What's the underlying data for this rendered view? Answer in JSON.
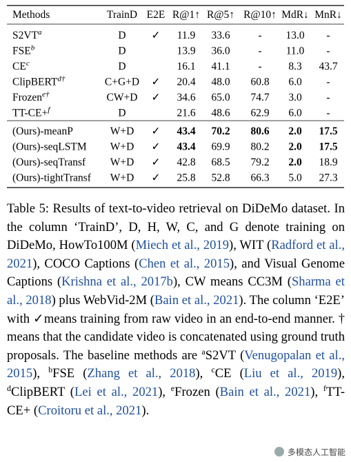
{
  "table": {
    "header": [
      "Methods",
      "TrainD",
      "E2E",
      "R@1↑",
      "R@5↑",
      "R@10↑",
      "MdR↓",
      "MnR↓"
    ],
    "groups": [
      [
        {
          "method": "S2VT",
          "sup": "a",
          "cells": [
            "D",
            "✓",
            "11.9",
            "33.6",
            "-",
            "13.0",
            "-"
          ],
          "bold": []
        },
        {
          "method": "FSE",
          "sup": "b",
          "cells": [
            "D",
            null,
            "13.9",
            "36.0",
            "-",
            "11.0",
            "-"
          ],
          "bold": []
        },
        {
          "method": "CE",
          "sup": "c",
          "cells": [
            "D",
            null,
            "16.1",
            "41.1",
            "-",
            "8.3",
            "43.7"
          ],
          "bold": []
        },
        {
          "method": "ClipBERT",
          "sup": "d†",
          "cells": [
            "C+G+D",
            "✓",
            "20.4",
            "48.0",
            "60.8",
            "6.0",
            "-"
          ],
          "bold": []
        },
        {
          "method": "Frozen",
          "sup": "e†",
          "cells": [
            "CW+D",
            "✓",
            "34.6",
            "65.0",
            "74.7",
            "3.0",
            "-"
          ],
          "bold": []
        },
        {
          "method": "TT-CE+",
          "sup": "f",
          "cells": [
            "D",
            null,
            "21.6",
            "48.6",
            "62.9",
            "6.0",
            "-"
          ],
          "bold": []
        }
      ],
      [
        {
          "method": "(Ours)-meanP",
          "sup": null,
          "cells": [
            "W+D",
            "✓",
            "43.4",
            "70.2",
            "80.6",
            "2.0",
            "17.5"
          ],
          "bold": [
            2,
            3,
            4,
            5,
            6
          ]
        },
        {
          "method": "(Ours)-seqLSTM",
          "sup": null,
          "cells": [
            "W+D",
            "✓",
            "43.4",
            "69.9",
            "80.2",
            "2.0",
            "17.5"
          ],
          "bold": [
            2,
            5,
            6
          ]
        },
        {
          "method": "(Ours)-seqTransf",
          "sup": null,
          "cells": [
            "W+D",
            "✓",
            "42.8",
            "68.5",
            "79.2",
            "2.0",
            "18.9"
          ],
          "bold": [
            5
          ]
        },
        {
          "method": "(Ours)-tightTransf",
          "sup": null,
          "cells": [
            "W+D",
            "✓",
            "25.8",
            "52.8",
            "66.3",
            "5.0",
            "27.3"
          ],
          "bold": []
        }
      ]
    ]
  },
  "caption": [
    {
      "text": "Table 5: Results of text-to-video retrieval on DiDeMo dataset. In the column ‘TrainD’, D, H, W, C, and G denote training on DiDeMo, HowTo100M ("
    },
    {
      "text": "Miech et al., 2019",
      "style": "cite"
    },
    {
      "text": "), WIT ("
    },
    {
      "text": "Radford et al., 2021",
      "style": "cite"
    },
    {
      "text": "), COCO Captions ("
    },
    {
      "text": "Chen et al., 2015",
      "style": "cite"
    },
    {
      "text": "), and Visual Genome Captions ("
    },
    {
      "text": "Krishna et al., 2017b",
      "style": "cite"
    },
    {
      "text": "), CW means CC3M ("
    },
    {
      "text": "Sharma et al., 2018",
      "style": "cite"
    },
    {
      "text": ") plus WebVid-2M ("
    },
    {
      "text": "Bain et al., 2021",
      "style": "cite"
    },
    {
      "text": "). The column ‘E2E’ with ✓means training from raw video in an end-to-end manner. † means that the candidate video is concatenated using ground truth proposals. The baseline methods are "
    },
    {
      "text": "a",
      "style": "sup"
    },
    {
      "text": "S2VT ("
    },
    {
      "text": "Venugopalan et al., 2015",
      "style": "cite"
    },
    {
      "text": "), "
    },
    {
      "text": "b",
      "style": "sup"
    },
    {
      "text": "FSE ("
    },
    {
      "text": "Zhang et al., 2018",
      "style": "cite"
    },
    {
      "text": "), "
    },
    {
      "text": "c",
      "style": "sup"
    },
    {
      "text": "CE ("
    },
    {
      "text": "Liu et al., 2019",
      "style": "cite"
    },
    {
      "text": "), "
    },
    {
      "text": "d",
      "style": "sup"
    },
    {
      "text": "ClipBERT ("
    },
    {
      "text": "Lei et al., 2021",
      "style": "cite"
    },
    {
      "text": "), "
    },
    {
      "text": "e",
      "style": "sup"
    },
    {
      "text": "Frozen ("
    },
    {
      "text": "Bain et al., 2021",
      "style": "cite"
    },
    {
      "text": "), "
    },
    {
      "text": "f",
      "style": "sup"
    },
    {
      "text": "TT-CE+ ("
    },
    {
      "text": "Croitoru et al., 2021",
      "style": "cite"
    },
    {
      "text": ")."
    }
  ],
  "watermark": "多模态人工智能"
}
